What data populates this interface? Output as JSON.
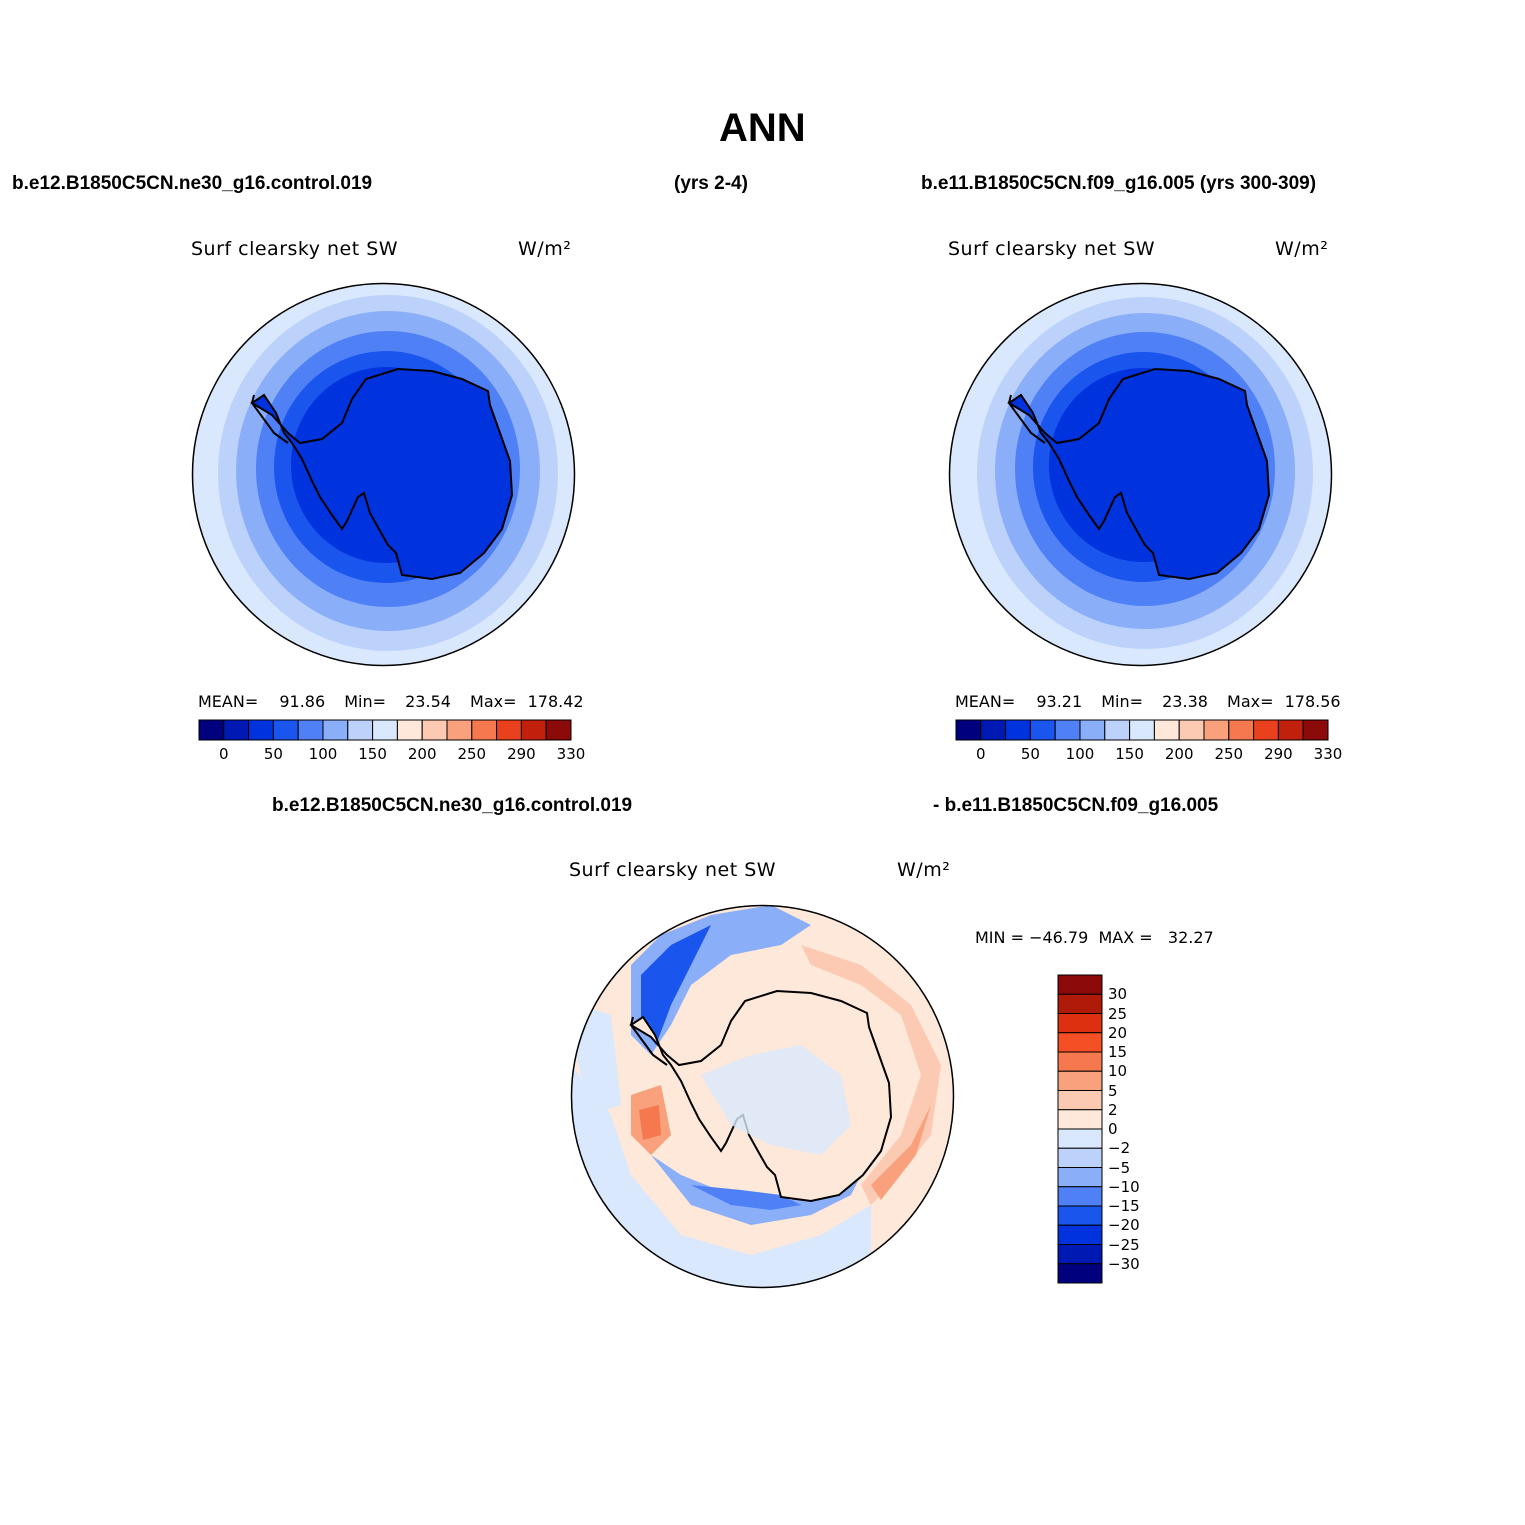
{
  "title": "ANN",
  "colors": {
    "abs_levels": [
      "#00007f",
      "#0019b3",
      "#0033dd",
      "#1a55ee",
      "#4f80f5",
      "#8aaef8",
      "#bcd2fb",
      "#d9e8fd",
      "#fde8d9",
      "#fccab2",
      "#f9a07c",
      "#f5784f",
      "#e9401d",
      "#c0200c",
      "#8c0a0a"
    ],
    "diff_levels": [
      "#00007f",
      "#0019b3",
      "#0033dd",
      "#1a55ee",
      "#4f80f5",
      "#8aaef8",
      "#bcd2fb",
      "#d9e8fd",
      "#fde8d9",
      "#fccab2",
      "#f9a07c",
      "#f5784f",
      "#f55025",
      "#dd3010",
      "#b01a08",
      "#8c0a0a"
    ],
    "coast": "#000000"
  },
  "panels": {
    "left": {
      "header_case": "b.e12.B1850C5CN.ne30_g16.control.019",
      "header_years": "(yrs 2-4)",
      "subtitle": "Surf clearsky net SW",
      "units": "W/m²",
      "stats": {
        "mean_label": "MEAN=",
        "mean": "91.86",
        "min_label": "Min=",
        "min": "23.54",
        "max_label": "Max=",
        "max": "178.42"
      }
    },
    "right": {
      "header": "b.e11.B1850C5CN.f09_g16.005 (yrs 300-309)",
      "subtitle": "Surf clearsky net SW",
      "units": "W/m²",
      "stats": {
        "mean_label": "MEAN=",
        "mean": "93.21",
        "min_label": "Min=",
        "min": "23.38",
        "max_label": "Max=",
        "max": "178.56"
      }
    },
    "diff": {
      "header_left": "b.e12.B1850C5CN.ne30_g16.control.019",
      "header_right": "- b.e11.B1850C5CN.f09_g16.005",
      "subtitle": "Surf clearsky net SW",
      "units": "W/m²",
      "minmax": "MIN = −46.79  MAX =   32.27"
    }
  },
  "abs_colorbar_labels": [
    "0",
    "50",
    "100",
    "150",
    "200",
    "250",
    "290",
    "330"
  ],
  "diff_colorbar_labels": [
    "30",
    "25",
    "20",
    "15",
    "10",
    "5",
    "2",
    "0",
    "−2",
    "−5",
    "−10",
    "−15",
    "−20",
    "−25",
    "−30"
  ]
}
